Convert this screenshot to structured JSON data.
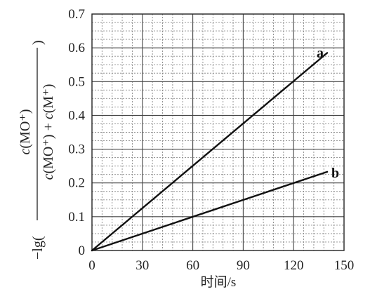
{
  "chart_data": {
    "type": "line",
    "title": "",
    "xlabel": "时间/s",
    "ylabel": {
      "prefix": "−lg(",
      "numerator": {
        "c": "c",
        "rest": "(MO⁺)"
      },
      "denominator": {
        "c1": "c",
        "rest1": "(MO⁺) + ",
        "c2": "c",
        "rest2": "(M⁺)"
      },
      "suffix": ")"
    },
    "xlim": [
      0,
      150
    ],
    "ylim": [
      0,
      0.7
    ],
    "xticks": [
      "0",
      "30",
      "60",
      "90",
      "120",
      "150"
    ],
    "yticks": [
      "0",
      "0.1",
      "0.2",
      "0.3",
      "0.4",
      "0.5",
      "0.6",
      "0.7"
    ],
    "grid": true,
    "series": [
      {
        "name": "a",
        "x": [
          0,
          140
        ],
        "y": [
          0,
          0.585
        ]
      },
      {
        "name": "b",
        "x": [
          0,
          140
        ],
        "y": [
          0,
          0.233
        ]
      }
    ]
  }
}
